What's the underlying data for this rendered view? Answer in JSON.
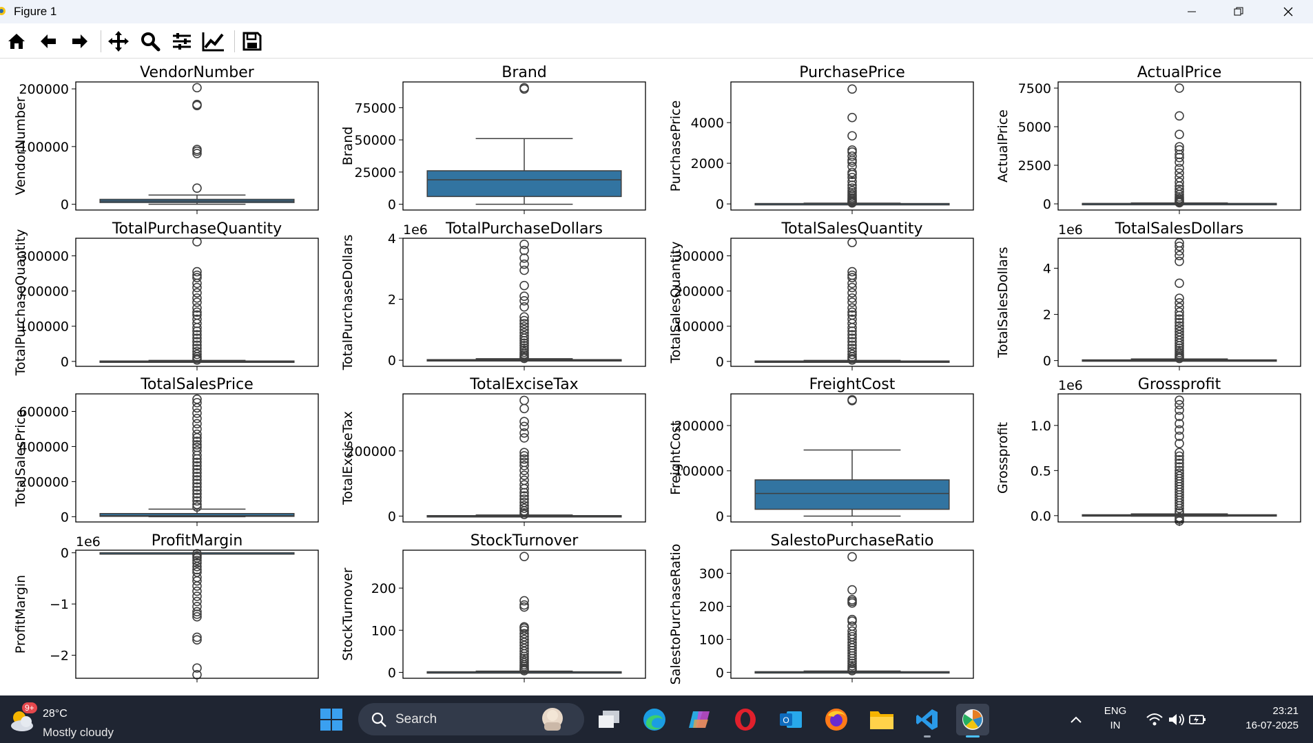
{
  "window": {
    "title": "Figure 1"
  },
  "toolbar": {
    "icons": [
      "home-icon",
      "back-arrow-icon",
      "forward-arrow-icon",
      "pan-icon",
      "zoom-icon",
      "configure-subplots-icon",
      "edit-axis-icon",
      "save-icon"
    ]
  },
  "chart_data": [
    {
      "type": "box",
      "title": "VendorNumber",
      "ylabel": "VendorNumber",
      "offset_label": "",
      "yticks": [
        {
          "v": 0,
          "l": "0"
        },
        {
          "v": 100000,
          "l": "100000"
        },
        {
          "v": 200000,
          "l": "200000"
        }
      ],
      "ylim": [
        -10000,
        212000
      ],
      "q1": 3000,
      "median": 5500,
      "q3": 8500,
      "whisker_low": 0,
      "whisker_high": 16000,
      "outliers": [
        28000,
        88000,
        92000,
        95000,
        171000,
        173000,
        202000
      ]
    },
    {
      "type": "box",
      "title": "Brand",
      "ylabel": "Brand",
      "offset_label": "",
      "yticks": [
        {
          "v": 0,
          "l": "0"
        },
        {
          "v": 25000,
          "l": "25000"
        },
        {
          "v": 50000,
          "l": "50000"
        },
        {
          "v": 75000,
          "l": "75000"
        }
      ],
      "ylim": [
        -4500,
        95000
      ],
      "q1": 6000,
      "median": 19000,
      "q3": 26000,
      "whisker_low": 0,
      "whisker_high": 51000,
      "outliers": [
        89500,
        90500
      ]
    },
    {
      "type": "box",
      "title": "PurchasePrice",
      "ylabel": "PurchasePrice",
      "offset_label": "",
      "yticks": [
        {
          "v": 0,
          "l": "0"
        },
        {
          "v": 2000,
          "l": "2000"
        },
        {
          "v": 4000,
          "l": "4000"
        }
      ],
      "ylim": [
        -300,
        6000
      ],
      "q1": 7,
      "median": 12,
      "q3": 20,
      "whisker_low": 0,
      "whisker_high": 40,
      "outliers": [
        50,
        80,
        120,
        170,
        230,
        300,
        380,
        460,
        550,
        650,
        780,
        920,
        1100,
        1300,
        1450,
        1550,
        1850,
        2050,
        2150,
        2350,
        2550,
        2650,
        3350,
        4250,
        5650
      ]
    },
    {
      "type": "box",
      "title": "ActualPrice",
      "ylabel": "ActualPrice",
      "offset_label": "",
      "yticks": [
        {
          "v": 0,
          "l": "0"
        },
        {
          "v": 2500,
          "l": "2500"
        },
        {
          "v": 5000,
          "l": "5000"
        },
        {
          "v": 7500,
          "l": "7500"
        }
      ],
      "ylim": [
        -400,
        7900
      ],
      "q1": 10,
      "median": 17,
      "q3": 28,
      "whisker_low": 0,
      "whisker_high": 55,
      "outliers": [
        70,
        110,
        170,
        250,
        340,
        450,
        600,
        780,
        950,
        1150,
        1400,
        1700,
        2000,
        2300,
        2700,
        3000,
        3200,
        3500,
        3700,
        4500,
        5700,
        7500
      ]
    },
    {
      "type": "box",
      "title": "TotalPurchaseQuantity",
      "ylabel": "TotalPurchaseQuantity",
      "offset_label": "",
      "yticks": [
        {
          "v": 0,
          "l": "0"
        },
        {
          "v": 100000,
          "l": "100000"
        },
        {
          "v": 200000,
          "l": "200000"
        },
        {
          "v": 300000,
          "l": "300000"
        }
      ],
      "ylim": [
        -14000,
        350000
      ],
      "q1": 30,
      "median": 200,
      "q3": 1200,
      "whisker_low": 0,
      "whisker_high": 3000,
      "outliers": [
        4000,
        8000,
        13000,
        20000,
        28000,
        37000,
        46000,
        56000,
        66000,
        76000,
        86000,
        96000,
        108000,
        120000,
        132000,
        140000,
        152000,
        168000,
        180000,
        195000,
        210000,
        222000,
        238000,
        245000,
        255000,
        340000
      ]
    },
    {
      "type": "box",
      "title": "TotalPurchaseDollars",
      "ylabel": "TotalPurchaseDollars",
      "offset_label": "1e6",
      "yticks": [
        {
          "v": 0,
          "l": "0"
        },
        {
          "v": 2,
          "l": "2"
        },
        {
          "v": 4,
          "l": "4"
        }
      ],
      "ylim": [
        -0.2,
        4.0
      ],
      "q1": 0.0005,
      "median": 0.003,
      "q3": 0.02,
      "whisker_low": 0,
      "whisker_high": 0.05,
      "outliers": [
        0.06,
        0.1,
        0.15,
        0.2,
        0.26,
        0.33,
        0.4,
        0.48,
        0.56,
        0.64,
        0.72,
        0.8,
        0.9,
        1.0,
        1.1,
        1.2,
        1.3,
        1.42,
        1.75,
        1.95,
        2.1,
        2.45,
        2.95,
        3.15,
        3.35,
        3.6,
        3.8
      ]
    },
    {
      "type": "box",
      "title": "TotalSalesQuantity",
      "ylabel": "TotalSalesQuantity",
      "offset_label": "",
      "yticks": [
        {
          "v": 0,
          "l": "0"
        },
        {
          "v": 100000,
          "l": "100000"
        },
        {
          "v": 200000,
          "l": "200000"
        },
        {
          "v": 300000,
          "l": "300000"
        }
      ],
      "ylim": [
        -14000,
        350000
      ],
      "q1": 30,
      "median": 200,
      "q3": 1200,
      "whisker_low": 0,
      "whisker_high": 3000,
      "outliers": [
        4000,
        8000,
        13000,
        20000,
        28000,
        37000,
        46000,
        56000,
        66000,
        76000,
        86000,
        96000,
        108000,
        120000,
        132000,
        140000,
        152000,
        168000,
        180000,
        195000,
        210000,
        222000,
        238000,
        245000,
        255000,
        338000
      ]
    },
    {
      "type": "box",
      "title": "TotalSalesDollars",
      "ylabel": "TotalSalesDollars",
      "offset_label": "1e6",
      "yticks": [
        {
          "v": 0,
          "l": "0"
        },
        {
          "v": 2,
          "l": "2"
        },
        {
          "v": 4,
          "l": "4"
        }
      ],
      "ylim": [
        -0.25,
        5.3
      ],
      "q1": 0.001,
      "median": 0.005,
      "q3": 0.03,
      "whisker_low": 0,
      "whisker_high": 0.07,
      "outliers": [
        0.09,
        0.14,
        0.2,
        0.27,
        0.35,
        0.44,
        0.54,
        0.64,
        0.75,
        0.87,
        1.0,
        1.12,
        1.25,
        1.38,
        1.5,
        1.65,
        1.8,
        1.95,
        2.1,
        2.3,
        2.5,
        2.7,
        3.35,
        4.3,
        4.55,
        4.75,
        4.95,
        5.1
      ]
    },
    {
      "type": "box",
      "title": "TotalSalesPrice",
      "ylabel": "TotalSalesPrice",
      "offset_label": "",
      "yticks": [
        {
          "v": 0,
          "l": "0"
        },
        {
          "v": 200000,
          "l": "200000"
        },
        {
          "v": 400000,
          "l": "400000"
        },
        {
          "v": 600000,
          "l": "600000"
        }
      ],
      "ylim": [
        -30000,
        700000
      ],
      "q1": 2000,
      "median": 6000,
      "q3": 18000,
      "whisker_low": 0,
      "whisker_high": 43000,
      "outliers": [
        55000,
        70000,
        90000,
        110000,
        130000,
        150000,
        170000,
        190000,
        210000,
        230000,
        250000,
        270000,
        290000,
        310000,
        330000,
        350000,
        375000,
        395000,
        410000,
        430000,
        450000,
        470000,
        500000,
        530000,
        560000,
        590000,
        620000,
        650000,
        670000
      ]
    },
    {
      "type": "box",
      "title": "TotalExciseTax",
      "ylabel": "TotalExciseTax",
      "offset_label": "",
      "yticks": [
        {
          "v": 0,
          "l": "0"
        },
        {
          "v": 200000,
          "l": "200000"
        }
      ],
      "ylim": [
        -18000,
        375000
      ],
      "q1": 50,
      "median": 300,
      "q3": 1500,
      "whisker_low": 0,
      "whisker_high": 3500,
      "outliers": [
        5000,
        10000,
        16000,
        24000,
        32000,
        42000,
        52000,
        62000,
        72000,
        84000,
        96000,
        110000,
        125000,
        140000,
        155000,
        165000,
        175000,
        185000,
        195000,
        240000,
        255000,
        275000,
        290000,
        330000,
        355000
      ]
    },
    {
      "type": "box",
      "title": "FreightCost",
      "ylabel": "FreightCost",
      "offset_label": "",
      "yticks": [
        {
          "v": 0,
          "l": "0"
        },
        {
          "v": 100000,
          "l": "100000"
        },
        {
          "v": 200000,
          "l": "200000"
        }
      ],
      "ylim": [
        -13000,
        270000
      ],
      "q1": 15000,
      "median": 50000,
      "q3": 80000,
      "whisker_low": 0,
      "whisker_high": 146000,
      "outliers": [
        255000,
        257000
      ]
    },
    {
      "type": "box",
      "title": "Grossprofit",
      "ylabel": "Grossprofit",
      "offset_label": "1e6",
      "yticks": [
        {
          "v": 0,
          "l": "0.0"
        },
        {
          "v": 0.5,
          "l": "0.5"
        },
        {
          "v": 1,
          "l": "1.0"
        }
      ],
      "ylim": [
        -0.07,
        1.35
      ],
      "q1": -0.001,
      "median": 0.002,
      "q3": 0.01,
      "whisker_low": -0.005,
      "whisker_high": 0.02,
      "outliers": [
        -0.06,
        -0.04,
        -0.02,
        0.03,
        0.05,
        0.08,
        0.11,
        0.14,
        0.17,
        0.2,
        0.23,
        0.26,
        0.29,
        0.32,
        0.35,
        0.38,
        0.41,
        0.44,
        0.47,
        0.5,
        0.54,
        0.58,
        0.62,
        0.66,
        0.7,
        0.8,
        0.88,
        0.95,
        1.02,
        1.1,
        1.17,
        1.23,
        1.28
      ]
    },
    {
      "type": "box",
      "title": "ProfitMargin",
      "ylabel": "ProfitMargin",
      "offset_label": "1e6",
      "yticks": [
        {
          "v": 0,
          "l": "0"
        },
        {
          "v": -1,
          "l": "−1"
        },
        {
          "v": -2,
          "l": "−2"
        }
      ],
      "ylim": [
        -2.45,
        0.05
      ],
      "q1": -3e-05,
      "median": -1e-05,
      "q3": 1e-05,
      "whisker_low": -5e-05,
      "whisker_high": 3e-05,
      "outliers": [
        -0.02,
        -0.06,
        -0.1,
        -0.15,
        -0.2,
        -0.27,
        -0.33,
        -0.38,
        -0.48,
        -0.55,
        -0.65,
        -0.75,
        -0.85,
        -0.95,
        -1.05,
        -1.15,
        -1.2,
        -1.25,
        -1.65,
        -1.7,
        -2.25,
        -2.38
      ]
    },
    {
      "type": "box",
      "title": "StockTurnover",
      "ylabel": "StockTurnover",
      "offset_label": "",
      "yticks": [
        {
          "v": 0,
          "l": "0"
        },
        {
          "v": 100,
          "l": "100"
        },
        {
          "v": 200,
          "l": "200"
        }
      ],
      "ylim": [
        -14,
        290
      ],
      "q1": 0.5,
      "median": 1,
      "q3": 1.5,
      "whisker_low": 0,
      "whisker_high": 3,
      "outliers": [
        4,
        7,
        10,
        14,
        18,
        23,
        28,
        33,
        38,
        44,
        50,
        57,
        64,
        71,
        78,
        85,
        92,
        100,
        105,
        108,
        155,
        160,
        170,
        275
      ]
    },
    {
      "type": "box",
      "title": "SalestoPurchaseRatio",
      "ylabel": "SalestoPurchaseRatio",
      "offset_label": "",
      "yticks": [
        {
          "v": 0,
          "l": "0"
        },
        {
          "v": 100,
          "l": "100"
        },
        {
          "v": 200,
          "l": "200"
        },
        {
          "v": 300,
          "l": "300"
        }
      ],
      "ylim": [
        -18,
        370
      ],
      "q1": 0.8,
      "median": 1.2,
      "q3": 2,
      "whisker_low": 0,
      "whisker_high": 4,
      "outliers": [
        5,
        9,
        14,
        20,
        27,
        34,
        42,
        50,
        58,
        66,
        74,
        82,
        90,
        100,
        108,
        115,
        125,
        140,
        155,
        160,
        210,
        215,
        220,
        250,
        350
      ]
    }
  ],
  "taskbar": {
    "weather_badge": "9+",
    "weather_temp": "28°C",
    "weather_desc": "Mostly cloudy",
    "search_placeholder": "Search",
    "lang_line1": "ENG",
    "lang_line2": "IN",
    "time": "23:21",
    "date": "16-07-2025",
    "apps": [
      "windows-start-icon",
      "task-view-icon",
      "edge-icon",
      "copilot-icon",
      "opera-icon",
      "outlook-icon",
      "firefox-icon",
      "file-explorer-icon",
      "vscode-icon",
      "matplotlib-figure-icon"
    ]
  },
  "colors": {
    "box_fill": "#3274a1",
    "taskbar": "#1f2532",
    "titlebar": "#eff3fa"
  }
}
